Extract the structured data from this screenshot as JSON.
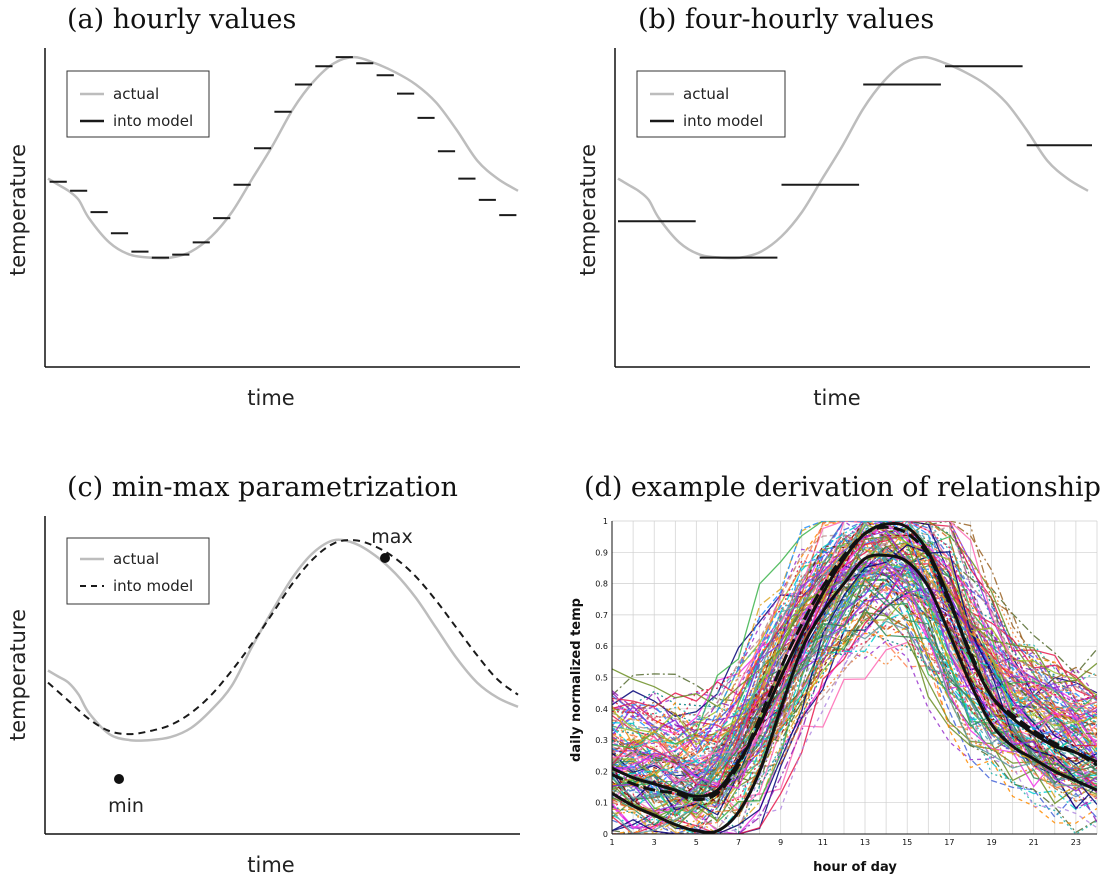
{
  "colors": {
    "actual": "#bdbdbd",
    "model": "#1a1a1a",
    "axis": "#111111",
    "grid": "#cfcfcf"
  },
  "chart_data": [
    {
      "type": "line",
      "caption": "(a) hourly values",
      "xlabel": "time",
      "ylabel": "temperature",
      "legend": [
        "actual",
        "into model"
      ],
      "legend_position": "top-left",
      "series": [
        {
          "name": "actual",
          "style": "solid-gray",
          "x": [
            0,
            0.5,
            1,
            1.5,
            2,
            3,
            4,
            5,
            6,
            7,
            8,
            9,
            10,
            11,
            12,
            13,
            14,
            15,
            16,
            17,
            18,
            19,
            20,
            21,
            22,
            23
          ],
          "y": [
            0.62,
            0.6,
            0.58,
            0.55,
            0.49,
            0.41,
            0.37,
            0.36,
            0.36,
            0.38,
            0.43,
            0.51,
            0.62,
            0.73,
            0.85,
            0.94,
            1.0,
            1.02,
            1.0,
            0.97,
            0.93,
            0.87,
            0.78,
            0.68,
            0.62,
            0.58
          ]
        },
        {
          "name": "into model",
          "style": "step-hourly",
          "x": [
            0,
            1,
            2,
            3,
            4,
            5,
            6,
            7,
            8,
            9,
            10,
            11,
            12,
            13,
            14,
            15,
            16,
            17,
            18,
            19,
            20,
            21,
            22
          ],
          "y": [
            0.61,
            0.58,
            0.51,
            0.44,
            0.38,
            0.36,
            0.37,
            0.41,
            0.49,
            0.6,
            0.72,
            0.84,
            0.93,
            0.99,
            1.02,
            1.0,
            0.96,
            0.9,
            0.82,
            0.71,
            0.62,
            0.55,
            0.5
          ]
        }
      ]
    },
    {
      "type": "line",
      "caption": "(b) four-hourly values",
      "xlabel": "time",
      "ylabel": "temperature",
      "legend": [
        "actual",
        "into model"
      ],
      "legend_position": "top-left",
      "series": [
        {
          "name": "actual",
          "style": "solid-gray",
          "x": [
            0,
            0.5,
            1,
            1.5,
            2,
            3,
            4,
            5,
            6,
            7,
            8,
            9,
            10,
            11,
            12,
            13,
            14,
            15,
            16,
            17,
            18,
            19,
            20,
            21,
            22,
            23
          ],
          "y": [
            0.62,
            0.6,
            0.58,
            0.55,
            0.49,
            0.41,
            0.37,
            0.36,
            0.36,
            0.38,
            0.43,
            0.51,
            0.62,
            0.73,
            0.85,
            0.94,
            1.0,
            1.02,
            1.0,
            0.97,
            0.93,
            0.87,
            0.78,
            0.68,
            0.62,
            0.58
          ]
        },
        {
          "name": "into model",
          "style": "step-4h",
          "x": [
            0,
            4,
            8,
            12,
            16,
            20
          ],
          "y": [
            0.48,
            0.36,
            0.6,
            0.93,
            0.99,
            0.73
          ]
        }
      ]
    },
    {
      "type": "line",
      "caption": "(c) min-max parametrization",
      "xlabel": "time",
      "ylabel": "temperature",
      "legend": [
        "actual",
        "into model"
      ],
      "legend_position": "top-left",
      "annotations": [
        "min",
        "max"
      ],
      "series": [
        {
          "name": "actual",
          "style": "solid-gray",
          "x": [
            0,
            0.5,
            1,
            1.5,
            2,
            3,
            4,
            5,
            6,
            7,
            8,
            9,
            10,
            11,
            12,
            13,
            14,
            15,
            16,
            17,
            18,
            19,
            20,
            21,
            22,
            23
          ],
          "y": [
            0.54,
            0.52,
            0.5,
            0.46,
            0.4,
            0.33,
            0.31,
            0.31,
            0.32,
            0.35,
            0.41,
            0.49,
            0.62,
            0.74,
            0.85,
            0.93,
            0.97,
            0.96,
            0.92,
            0.86,
            0.78,
            0.68,
            0.58,
            0.5,
            0.45,
            0.42
          ]
        },
        {
          "name": "into model",
          "style": "dashed",
          "x": [
            0,
            1,
            2,
            3,
            4,
            5,
            6,
            7,
            8,
            9,
            10,
            11,
            12,
            13,
            14,
            15,
            16,
            17,
            18,
            19,
            20,
            21,
            22,
            23
          ],
          "y": [
            0.5,
            0.44,
            0.38,
            0.34,
            0.33,
            0.34,
            0.36,
            0.4,
            0.46,
            0.54,
            0.63,
            0.73,
            0.83,
            0.91,
            0.96,
            0.97,
            0.95,
            0.91,
            0.85,
            0.77,
            0.68,
            0.59,
            0.51,
            0.46
          ]
        }
      ]
    },
    {
      "type": "line",
      "caption": "(d) example derivation of relationship",
      "xlabel": "hour of day",
      "ylabel": "daily normalized temp",
      "x_ticks": [
        1,
        3,
        5,
        7,
        9,
        11,
        13,
        15,
        17,
        19,
        21,
        23
      ],
      "y_ticks": [
        0,
        0.1,
        0.2,
        0.3,
        0.4,
        0.5,
        0.6,
        0.7,
        0.8,
        0.9,
        1
      ],
      "y_tick_labels": [
        "0",
        "0.1",
        "0.2",
        "0.3",
        "0.4",
        "0.5",
        "0.6",
        "0.7",
        "0.8",
        "0.9",
        "1"
      ],
      "xlim": [
        1,
        24
      ],
      "ylim": [
        0,
        1
      ],
      "grid": true,
      "series": [
        {
          "x": [
            1,
            2,
            3,
            4,
            5,
            6,
            7,
            8,
            9,
            10,
            11,
            12,
            13,
            14,
            15,
            16,
            17,
            18,
            19,
            20,
            21,
            22,
            23,
            24
          ],
          "y": [
            0.21,
            0.18,
            0.16,
            0.14,
            0.12,
            0.14,
            0.23,
            0.35,
            0.5,
            0.64,
            0.77,
            0.88,
            0.96,
            0.99,
            0.98,
            0.9,
            0.75,
            0.57,
            0.44,
            0.37,
            0.32,
            0.28,
            0.26,
            0.23
          ]
        },
        {
          "x": [
            1,
            2,
            3,
            4,
            5,
            6,
            7,
            8,
            9,
            10,
            11,
            12,
            13,
            14,
            15,
            16,
            17,
            18,
            19,
            20,
            21,
            22,
            23,
            24
          ],
          "y": [
            0.13,
            0.09,
            0.06,
            0.03,
            0.01,
            0.01,
            0.07,
            0.2,
            0.4,
            0.59,
            0.71,
            0.8,
            0.88,
            0.89,
            0.87,
            0.79,
            0.64,
            0.48,
            0.35,
            0.28,
            0.24,
            0.2,
            0.17,
            0.14
          ]
        },
        {
          "x": [
            1,
            2,
            3,
            4,
            5,
            6,
            7,
            8,
            9,
            10,
            11,
            12,
            13,
            14,
            15,
            16,
            17,
            18,
            19,
            20,
            21,
            22,
            23,
            24
          ],
          "y": [
            0.19,
            0.16,
            0.14,
            0.13,
            0.11,
            0.13,
            0.22,
            0.37,
            0.53,
            0.67,
            0.79,
            0.89,
            0.96,
            0.98,
            0.96,
            0.89,
            0.74,
            0.58,
            0.44,
            0.38,
            0.33,
            0.29,
            0.26,
            0.22
          ]
        }
      ]
    }
  ]
}
